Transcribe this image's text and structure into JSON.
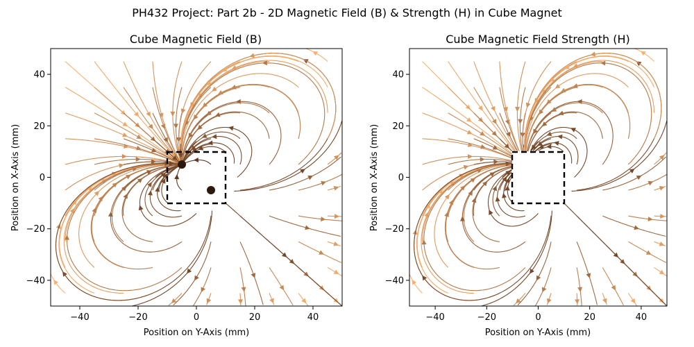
{
  "suptitle": "PH432 Project: Part 2b - 2D Magnetic Field (B) & Strength (H) in Cube Magnet",
  "chart_data": [
    {
      "type": "streamplot",
      "title": "Cube Magnetic Field (B)",
      "xlabel": "Position on Y-Axis (mm)",
      "ylabel": "Position on X-Axis (mm)",
      "xlim": [
        -50,
        50
      ],
      "ylim": [
        -50,
        50
      ],
      "xticks": [
        -40,
        -20,
        0,
        20,
        40
      ],
      "yticks": [
        -40,
        -20,
        0,
        20,
        40
      ],
      "xtick_labels": [
        "−40",
        "−20",
        "0",
        "20",
        "40"
      ],
      "ytick_labels": [
        "−40",
        "−20",
        "0",
        "20",
        "40"
      ],
      "grid": false,
      "colormap": "copper (light orange far field, dark brown near center)",
      "magnet_outline": {
        "x": [
          -10,
          10
        ],
        "y": [
          -10,
          10
        ],
        "style": "dashed black"
      },
      "dark_spots": [
        [
          -5,
          5
        ],
        [
          5,
          -5
        ]
      ],
      "interior_field": true
    },
    {
      "type": "streamplot",
      "title": "Cube Magnetic Field Strength (H)",
      "xlabel": "Position on Y-Axis (mm)",
      "ylabel": "Position on X-Axis (mm)",
      "xlim": [
        -50,
        50
      ],
      "ylim": [
        -50,
        50
      ],
      "xticks": [
        -40,
        -20,
        0,
        20,
        40
      ],
      "yticks": [
        -40,
        -20,
        0,
        20,
        40
      ],
      "xtick_labels": [
        "−40",
        "−20",
        "0",
        "20",
        "40"
      ],
      "ytick_labels": [
        "−40",
        "−20",
        "0",
        "20",
        "40"
      ],
      "grid": false,
      "colormap": "copper (light orange far field, dark brown near center)",
      "magnet_outline": {
        "x": [
          -10,
          10
        ],
        "y": [
          -10,
          10
        ],
        "style": "dashed black"
      },
      "dark_spots": [],
      "interior_field": false
    }
  ]
}
